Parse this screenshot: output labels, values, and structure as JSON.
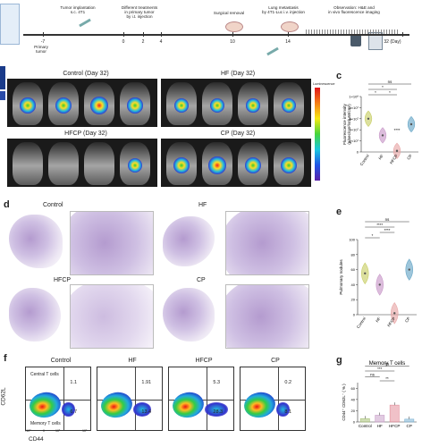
{
  "timeline": {
    "events": [
      {
        "label": "Tumor implantation\ns.c. 4T1",
        "day": "-7"
      },
      {
        "label": "Different treatments\nin primary tumor\nby i.t. injection",
        "day": "0"
      },
      {
        "label": "Surgical removal",
        "day": "10"
      },
      {
        "label": "Lung metastasis\nby 4T1-Luc i.v. injection",
        "day": "14"
      },
      {
        "label": "Observation: H&E and\nin vivo fluorescence imaging",
        "day": "32 (Day)"
      }
    ],
    "ticks": [
      "-7",
      "0",
      "2",
      "4",
      "10",
      "14",
      "32 (Day)"
    ],
    "primary_tumor_label": "Primary\ntumor"
  },
  "panel_labels": {
    "c": "c",
    "d": "d",
    "e": "e",
    "f": "f",
    "g": "g"
  },
  "imaging": {
    "groups": [
      "Control (Day 32)",
      "HF (Day 32)",
      "HFCP (Day 32)",
      "CP (Day 32)"
    ],
    "colorbar_title": "Luminescence"
  },
  "histology": {
    "groups": [
      "Control",
      "HF",
      "HFCP",
      "CP"
    ]
  },
  "flow": {
    "groups": [
      "Control",
      "HF",
      "HFCP",
      "CP"
    ],
    "x_label": "CD44",
    "y_label": "CD62L",
    "quadrant_labels": {
      "central": "Central T cells",
      "memory": "Memory T cells"
    },
    "values": [
      {
        "upper": "1.1",
        "lower": "6.7"
      },
      {
        "upper": "1.91",
        "lower": "13.4"
      },
      {
        "upper": "5.3",
        "lower": "28.3"
      },
      {
        "upper": "0.2",
        "lower": "8.1"
      }
    ],
    "axis_ticks": [
      "-10³",
      "0",
      "10³",
      "10⁵"
    ]
  },
  "chart_data": [
    {
      "type": "violin",
      "panel": "c",
      "categories": [
        "Control",
        "HF",
        "HFCP",
        "CP"
      ],
      "ylabel": "Fluorescence intensity\n(p/sec/cm²/sr/μW/cm²)",
      "yticks": [
        "0",
        "2×10⁷",
        "4×10⁷",
        "6×10⁷",
        "8×10⁷",
        "1×10⁸"
      ],
      "ylim": [
        0,
        100000000
      ],
      "values": [
        60000000,
        30000000,
        2000000,
        50000000
      ],
      "significance": [
        "ns",
        "*",
        "*",
        "*",
        "****"
      ],
      "colors": [
        "#c9cf6a",
        "#c99ac9",
        "#e8a7a7",
        "#6aa8c7"
      ]
    },
    {
      "type": "violin",
      "panel": "e",
      "categories": [
        "Control",
        "HF",
        "HFCP",
        "CP"
      ],
      "ylabel": "Pulmonary nodules",
      "yticks": [
        "0",
        "20",
        "40",
        "60",
        "80",
        "100"
      ],
      "ylim": [
        0,
        100
      ],
      "values": [
        55,
        40,
        2,
        60
      ],
      "significance": [
        "ns",
        "****",
        "****",
        "*"
      ],
      "colors": [
        "#c9cf6a",
        "#c99ac9",
        "#e8a7a7",
        "#6aa8c7"
      ]
    },
    {
      "type": "bar",
      "panel": "g",
      "title": "Memory T cells",
      "categories": [
        "Control",
        "HF",
        "HFCP",
        "CP"
      ],
      "ylabel": "CD44⁺ CD62L⁻ ( % )",
      "yticks": [
        "0",
        "20",
        "40",
        "60"
      ],
      "ylim": [
        0,
        70
      ],
      "values": [
        6,
        12,
        30,
        5
      ],
      "significance": [
        "ns",
        "***",
        "ns",
        "**"
      ],
      "colors": [
        "#a9c27a",
        "#c9a0c9",
        "#e38e9a",
        "#7eb3d3"
      ]
    }
  ]
}
